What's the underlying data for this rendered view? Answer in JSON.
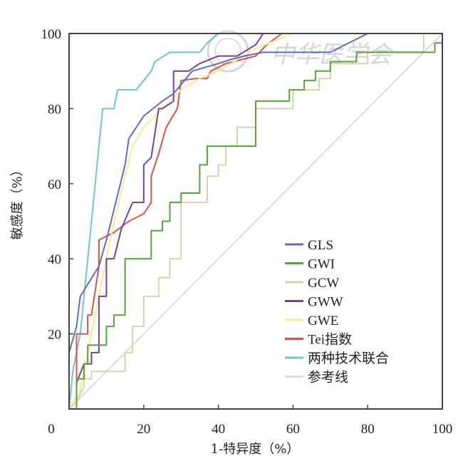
{
  "chart_data": {
    "type": "line",
    "title": "",
    "xlabel": "1-特异度（%）",
    "ylabel": "敏感度（%）",
    "xlim": [
      0,
      100
    ],
    "ylim": [
      0,
      100
    ],
    "x_ticks": [
      "0",
      "20",
      "40",
      "60",
      "80",
      "100"
    ],
    "y_ticks": [
      "20",
      "40",
      "60",
      "80",
      "100"
    ],
    "grid": false,
    "legend_position": "lower-right",
    "watermark": "中华医学会",
    "series": [
      {
        "name": "GLS",
        "color": "#5a6ec2",
        "points": [
          [
            0,
            15
          ],
          [
            2,
            22
          ],
          [
            3,
            30
          ],
          [
            8,
            38
          ],
          [
            10,
            45
          ],
          [
            15,
            65
          ],
          [
            16,
            72
          ],
          [
            20,
            78
          ],
          [
            25,
            82
          ],
          [
            28,
            84
          ],
          [
            33,
            90
          ],
          [
            40,
            92
          ],
          [
            43,
            93
          ],
          [
            47,
            94
          ],
          [
            52,
            95
          ],
          [
            60,
            95
          ],
          [
            70,
            95
          ],
          [
            80,
            100
          ],
          [
            100,
            100
          ]
        ]
      },
      {
        "name": "GWI",
        "color": "#54a53c",
        "points": [
          [
            0,
            0
          ],
          [
            2,
            0
          ],
          [
            2,
            8
          ],
          [
            4,
            8
          ],
          [
            4,
            12
          ],
          [
            5,
            12
          ],
          [
            5,
            17
          ],
          [
            10,
            17
          ],
          [
            10,
            22
          ],
          [
            12,
            22
          ],
          [
            12,
            25
          ],
          [
            15,
            25
          ],
          [
            15,
            40
          ],
          [
            22,
            40
          ],
          [
            22,
            47.5
          ],
          [
            25,
            47.5
          ],
          [
            25,
            50
          ],
          [
            27,
            50
          ],
          [
            27,
            55
          ],
          [
            30,
            55
          ],
          [
            30,
            57.5
          ],
          [
            35,
            57.5
          ],
          [
            35,
            65
          ],
          [
            37,
            65
          ],
          [
            37,
            70
          ],
          [
            50,
            70
          ],
          [
            50,
            82
          ],
          [
            59,
            82
          ],
          [
            59,
            85
          ],
          [
            63,
            85
          ],
          [
            63,
            87.5
          ],
          [
            66,
            87.5
          ],
          [
            66,
            90
          ],
          [
            70,
            90
          ],
          [
            70,
            92.5
          ],
          [
            77,
            92.5
          ],
          [
            77,
            95
          ],
          [
            98,
            95
          ],
          [
            98,
            97.5
          ],
          [
            100,
            97.5
          ]
        ]
      },
      {
        "name": "GCW",
        "color": "#d9d2aa",
        "points": [
          [
            0,
            0
          ],
          [
            2,
            2
          ],
          [
            4,
            6
          ],
          [
            4,
            8
          ],
          [
            6,
            8
          ],
          [
            6,
            10
          ],
          [
            15,
            10
          ],
          [
            15,
            15
          ],
          [
            17,
            15
          ],
          [
            17,
            22
          ],
          [
            20,
            22
          ],
          [
            20,
            30
          ],
          [
            24,
            30
          ],
          [
            24,
            35
          ],
          [
            27,
            35
          ],
          [
            27,
            40
          ],
          [
            30,
            40
          ],
          [
            30,
            55
          ],
          [
            37,
            55
          ],
          [
            37,
            62
          ],
          [
            40,
            62
          ],
          [
            40,
            65
          ],
          [
            42,
            65
          ],
          [
            42,
            70
          ],
          [
            45,
            70
          ],
          [
            45,
            75
          ],
          [
            50,
            75
          ],
          [
            50,
            80
          ],
          [
            60,
            80
          ],
          [
            60,
            85
          ],
          [
            67,
            85
          ],
          [
            67,
            88
          ],
          [
            70,
            88
          ],
          [
            70,
            92
          ],
          [
            80,
            92
          ],
          [
            80,
            95
          ],
          [
            95,
            95
          ],
          [
            95,
            100
          ],
          [
            100,
            100
          ]
        ]
      },
      {
        "name": "GWW",
        "color": "#7c3f95",
        "points": [
          [
            0,
            0
          ],
          [
            2,
            0
          ],
          [
            2,
            7
          ],
          [
            4,
            12
          ],
          [
            6,
            12
          ],
          [
            6,
            15
          ],
          [
            8,
            15
          ],
          [
            8,
            30
          ],
          [
            10,
            30
          ],
          [
            10,
            40
          ],
          [
            12,
            40
          ],
          [
            14,
            48
          ],
          [
            17,
            55
          ],
          [
            20,
            55
          ],
          [
            20,
            65
          ],
          [
            22,
            67
          ],
          [
            24,
            80
          ],
          [
            25,
            80
          ],
          [
            28,
            82
          ],
          [
            28,
            90
          ],
          [
            32,
            90
          ],
          [
            35,
            92
          ],
          [
            40,
            94
          ],
          [
            45,
            94
          ],
          [
            50,
            97
          ],
          [
            52,
            100
          ],
          [
            100,
            100
          ]
        ]
      },
      {
        "name": "GWE",
        "color": "#f2ee90",
        "points": [
          [
            0,
            0
          ],
          [
            3,
            5
          ],
          [
            6,
            20
          ],
          [
            8,
            30
          ],
          [
            11,
            45
          ],
          [
            14,
            58
          ],
          [
            17,
            70
          ],
          [
            20,
            75
          ],
          [
            25,
            80
          ],
          [
            30,
            85
          ],
          [
            35,
            88
          ],
          [
            40,
            90
          ],
          [
            45,
            93
          ],
          [
            50,
            96
          ],
          [
            55,
            98
          ],
          [
            60,
            100
          ],
          [
            100,
            100
          ]
        ]
      },
      {
        "name": "Tei指数",
        "color": "#e0504a",
        "points": [
          [
            0,
            0
          ],
          [
            2,
            0
          ],
          [
            2,
            20
          ],
          [
            5,
            20
          ],
          [
            5,
            25
          ],
          [
            6,
            25
          ],
          [
            8,
            38
          ],
          [
            8,
            45
          ],
          [
            12,
            47
          ],
          [
            16,
            50
          ],
          [
            20,
            52
          ],
          [
            22,
            55
          ],
          [
            22,
            62
          ],
          [
            24,
            68
          ],
          [
            26,
            75
          ],
          [
            29,
            80
          ],
          [
            30,
            87.5
          ],
          [
            34,
            88
          ],
          [
            37,
            88
          ],
          [
            38,
            90
          ],
          [
            42,
            92
          ],
          [
            46,
            93
          ],
          [
            50,
            94
          ],
          [
            53,
            97
          ],
          [
            57,
            100
          ],
          [
            100,
            100
          ]
        ]
      },
      {
        "name": "两种技术联合",
        "color": "#6cc7cc",
        "points": [
          [
            0,
            0
          ],
          [
            1,
            10
          ],
          [
            3,
            20
          ],
          [
            5,
            40
          ],
          [
            7,
            60
          ],
          [
            8,
            70
          ],
          [
            9,
            80
          ],
          [
            12,
            80
          ],
          [
            13,
            85
          ],
          [
            18,
            85
          ],
          [
            22,
            90
          ],
          [
            23,
            92.5
          ],
          [
            27,
            95
          ],
          [
            35,
            95
          ],
          [
            37,
            97.5
          ],
          [
            40,
            100
          ],
          [
            100,
            100
          ]
        ]
      },
      {
        "name": "参考线",
        "color": "#dcdcdc",
        "points": [
          [
            0,
            0
          ],
          [
            100,
            100
          ]
        ]
      }
    ]
  }
}
